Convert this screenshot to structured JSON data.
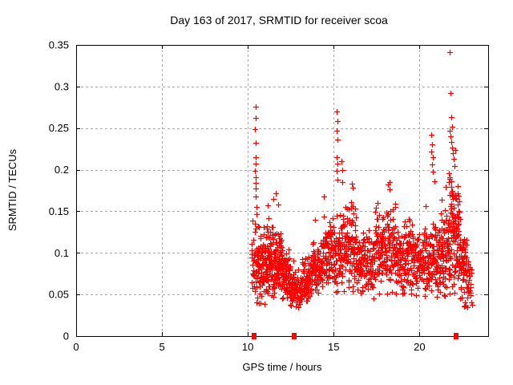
{
  "chart_data": {
    "type": "scatter",
    "title": "Day 163 of 2017, SRMTID for receiver scoa",
    "xlabel": "GPS time / hours",
    "ylabel": "SRMTID / TECUs",
    "xlim": [
      0,
      24
    ],
    "ylim": [
      0,
      0.35
    ],
    "x_ticks": [
      0,
      5,
      10,
      15,
      20
    ],
    "x_tick_labels": [
      "0",
      "5",
      "10",
      "15",
      "20"
    ],
    "y_ticks": [
      0,
      0.05,
      0.1,
      0.15,
      0.2,
      0.25,
      0.3,
      0.35
    ],
    "y_tick_labels": [
      "0",
      "0.05",
      "0.1",
      "0.15",
      "0.2",
      "0.25",
      "0.3",
      "0.35"
    ],
    "grid": true,
    "grid_color": "#a8a8a8",
    "marker": {
      "shape": "plus",
      "color": "#ff0000",
      "size": 7
    },
    "data_x_range": [
      10.2,
      23.05
    ],
    "zero_marker_x": [
      10.35,
      12.72,
      22.15
    ],
    "outlier_points": [
      [
        10.44,
        0.276
      ],
      [
        10.45,
        0.262
      ],
      [
        10.43,
        0.249
      ],
      [
        10.46,
        0.232
      ],
      [
        10.44,
        0.215
      ],
      [
        10.47,
        0.207
      ],
      [
        10.43,
        0.199
      ],
      [
        10.45,
        0.191
      ],
      [
        10.46,
        0.184
      ],
      [
        10.44,
        0.177
      ],
      [
        10.48,
        0.168
      ],
      [
        10.5,
        0.155
      ],
      [
        10.52,
        0.147
      ],
      [
        11.15,
        0.157
      ],
      [
        11.22,
        0.142
      ],
      [
        11.48,
        0.165
      ],
      [
        11.62,
        0.172
      ],
      [
        11.78,
        0.158
      ],
      [
        13.92,
        0.14
      ],
      [
        14.45,
        0.168
      ],
      [
        15.18,
        0.27
      ],
      [
        15.2,
        0.258
      ],
      [
        15.17,
        0.247
      ],
      [
        15.22,
        0.236
      ],
      [
        15.19,
        0.215
      ],
      [
        15.21,
        0.207
      ],
      [
        15.18,
        0.199
      ],
      [
        15.23,
        0.188
      ],
      [
        15.45,
        0.21
      ],
      [
        15.5,
        0.2
      ],
      [
        15.48,
        0.185
      ],
      [
        16.05,
        0.183
      ],
      [
        16.12,
        0.178
      ],
      [
        18.15,
        0.182
      ],
      [
        18.25,
        0.176
      ],
      [
        20.35,
        0.156
      ],
      [
        20.7,
        0.242
      ],
      [
        20.74,
        0.23
      ],
      [
        20.68,
        0.222
      ],
      [
        20.76,
        0.215
      ],
      [
        20.72,
        0.206
      ],
      [
        20.8,
        0.198
      ],
      [
        20.85,
        0.186
      ],
      [
        21.78,
        0.341
      ],
      [
        21.8,
        0.292
      ],
      [
        21.84,
        0.263
      ],
      [
        21.88,
        0.252
      ],
      [
        21.76,
        0.247
      ],
      [
        21.82,
        0.24
      ],
      [
        21.86,
        0.233
      ],
      [
        21.92,
        0.227
      ],
      [
        21.96,
        0.22
      ],
      [
        22.0,
        0.213
      ],
      [
        22.05,
        0.204
      ],
      [
        21.72,
        0.196
      ]
    ],
    "density_clusters": [
      [
        10.2,
        10.5,
        30,
        0.095,
        0.03,
        0.048,
        0.175
      ],
      [
        10.5,
        11.0,
        75,
        0.085,
        0.028,
        0.035,
        0.15
      ],
      [
        11.0,
        11.5,
        85,
        0.088,
        0.026,
        0.045,
        0.15
      ],
      [
        11.5,
        12.0,
        90,
        0.09,
        0.024,
        0.05,
        0.14
      ],
      [
        12.0,
        12.45,
        70,
        0.075,
        0.02,
        0.042,
        0.12
      ],
      [
        12.45,
        13.15,
        85,
        0.057,
        0.013,
        0.033,
        0.095
      ],
      [
        13.15,
        13.75,
        75,
        0.068,
        0.017,
        0.04,
        0.11
      ],
      [
        13.75,
        14.35,
        75,
        0.085,
        0.02,
        0.05,
        0.135
      ],
      [
        14.35,
        14.85,
        65,
        0.1,
        0.024,
        0.058,
        0.16
      ],
      [
        14.85,
        15.45,
        65,
        0.1,
        0.028,
        0.05,
        0.175
      ],
      [
        15.45,
        16.35,
        115,
        0.108,
        0.03,
        0.05,
        0.185
      ],
      [
        16.35,
        17.4,
        115,
        0.085,
        0.024,
        0.042,
        0.14
      ],
      [
        17.4,
        18.6,
        145,
        0.105,
        0.03,
        0.05,
        0.185
      ],
      [
        18.6,
        19.6,
        125,
        0.095,
        0.027,
        0.05,
        0.158
      ],
      [
        19.6,
        20.6,
        110,
        0.09,
        0.025,
        0.048,
        0.152
      ],
      [
        20.6,
        21.1,
        70,
        0.09,
        0.028,
        0.045,
        0.165
      ],
      [
        21.1,
        21.7,
        85,
        0.1,
        0.03,
        0.048,
        0.185
      ],
      [
        21.7,
        22.35,
        115,
        0.12,
        0.038,
        0.05,
        0.25
      ],
      [
        22.35,
        22.75,
        55,
        0.08,
        0.028,
        0.035,
        0.15
      ],
      [
        22.75,
        23.05,
        25,
        0.058,
        0.018,
        0.03,
        0.1
      ]
    ]
  }
}
